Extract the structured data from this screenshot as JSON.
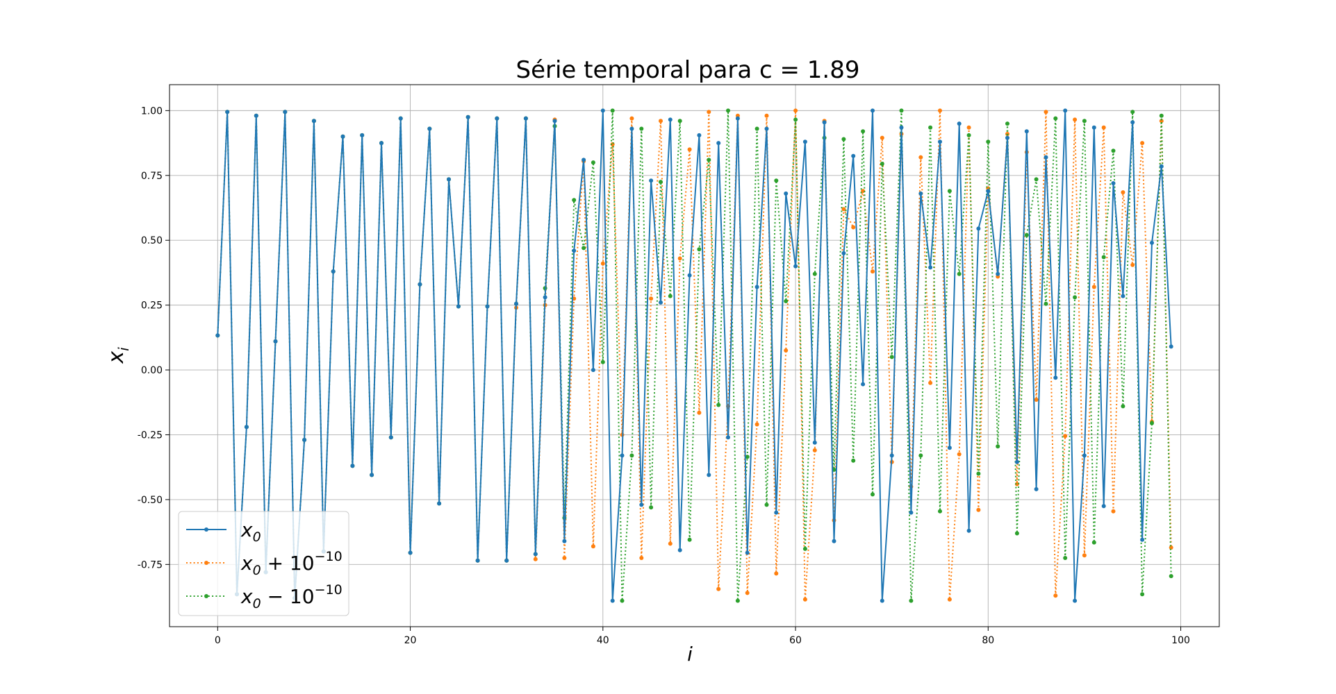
{
  "chart_data": {
    "type": "line",
    "title": "Série temporal para c = 1.89",
    "xlabel": "i",
    "ylabel_base": "x",
    "ylabel_sub": "i",
    "xlim": [
      -5,
      104
    ],
    "ylim": [
      -0.99,
      1.1
    ],
    "xticks": [
      0,
      20,
      40,
      60,
      80,
      100
    ],
    "yticks": [
      -0.75,
      -0.5,
      -0.25,
      0.0,
      0.25,
      0.5,
      0.75,
      1.0
    ],
    "grid": true,
    "legend_position": "lower-left",
    "series": [
      {
        "legend_base": "x",
        "legend_sub": "0",
        "legend_op": "",
        "legend_sup": "",
        "color": "#1f77b4",
        "linestyle": "solid",
        "x": [
          0,
          1,
          2,
          3,
          4,
          5,
          6,
          7,
          8,
          9,
          10,
          11,
          12,
          13,
          14,
          15,
          16,
          17,
          18,
          19,
          20,
          21,
          22,
          23,
          24,
          25,
          26,
          27,
          28,
          29,
          30,
          31,
          32,
          33,
          34,
          35,
          36,
          37,
          38,
          39,
          40,
          41,
          42,
          43,
          44,
          45,
          46,
          47,
          48,
          49,
          50,
          51,
          52,
          53,
          54,
          55,
          56,
          57,
          58,
          59,
          60,
          61,
          62,
          63,
          64,
          65,
          66,
          67,
          68,
          69,
          70,
          71,
          72,
          73,
          74,
          75,
          76,
          77,
          78,
          79,
          80,
          81,
          82,
          83,
          84,
          85,
          86,
          87,
          88,
          89,
          90,
          91,
          92,
          93,
          94,
          95,
          96,
          97,
          98,
          99
        ],
        "y": [
          0.133,
          0.995,
          -0.865,
          -0.22,
          0.98,
          -0.78,
          0.11,
          0.995,
          -0.88,
          -0.27,
          0.96,
          -0.7,
          0.38,
          0.9,
          -0.37,
          0.905,
          -0.405,
          0.875,
          -0.26,
          0.97,
          -0.705,
          0.33,
          0.93,
          -0.515,
          0.735,
          0.245,
          0.975,
          -0.735,
          0.245,
          0.97,
          -0.735,
          0.255,
          0.97,
          -0.71,
          0.28,
          0.96,
          -0.66,
          0.46,
          0.81,
          0.0,
          1.0,
          -0.89,
          -0.33,
          0.93,
          -0.52,
          0.73,
          0.26,
          0.965,
          -0.695,
          0.365,
          0.905,
          -0.405,
          0.875,
          -0.26,
          0.97,
          -0.705,
          0.32,
          0.93,
          -0.55,
          0.68,
          0.4,
          0.88,
          -0.28,
          0.955,
          -0.66,
          0.45,
          0.825,
          -0.055,
          1.0,
          -0.89,
          -0.33,
          0.935,
          -0.55,
          0.68,
          0.395,
          0.88,
          -0.3,
          0.95,
          -0.62,
          0.545,
          0.69,
          0.37,
          0.895,
          -0.355,
          0.92,
          -0.46,
          0.82,
          -0.03,
          1.0,
          -0.89,
          -0.33,
          0.935,
          -0.525,
          0.72,
          0.285,
          0.955,
          -0.655,
          0.49,
          0.785,
          0.09
        ]
      },
      {
        "legend_base": "x",
        "legend_sub": "0",
        "legend_op": "+ 10",
        "legend_sup": "−10",
        "color": "#ff7f0e",
        "linestyle": "dotted",
        "x": [
          0,
          1,
          2,
          3,
          4,
          5,
          6,
          7,
          8,
          9,
          10,
          11,
          12,
          13,
          14,
          15,
          16,
          17,
          18,
          19,
          20,
          21,
          22,
          23,
          24,
          25,
          26,
          27,
          28,
          29,
          30,
          31,
          32,
          33,
          34,
          35,
          36,
          37,
          38,
          39,
          40,
          41,
          42,
          43,
          44,
          45,
          46,
          47,
          48,
          49,
          50,
          51,
          52,
          53,
          54,
          55,
          56,
          57,
          58,
          59,
          60,
          61,
          62,
          63,
          64,
          65,
          66,
          67,
          68,
          69,
          70,
          71,
          72,
          73,
          74,
          75,
          76,
          77,
          78,
          79,
          80,
          81,
          82,
          83,
          84,
          85,
          86,
          87,
          88,
          89,
          90,
          91,
          92,
          93,
          94,
          95,
          96,
          97,
          98,
          99
        ],
        "y": [
          0.133,
          0.995,
          -0.865,
          -0.22,
          0.98,
          -0.78,
          0.11,
          0.995,
          -0.88,
          -0.27,
          0.96,
          -0.7,
          0.38,
          0.9,
          -0.37,
          0.905,
          -0.405,
          0.875,
          -0.26,
          0.97,
          -0.705,
          0.33,
          0.93,
          -0.515,
          0.735,
          0.245,
          0.975,
          -0.735,
          0.245,
          0.97,
          -0.735,
          0.24,
          0.97,
          -0.73,
          0.25,
          0.965,
          -0.725,
          0.275,
          0.805,
          -0.68,
          0.41,
          0.87,
          -0.25,
          0.97,
          -0.725,
          0.275,
          0.96,
          -0.67,
          0.43,
          0.85,
          -0.165,
          0.995,
          -0.845,
          -0.14,
          0.98,
          -0.86,
          -0.21,
          0.98,
          -0.785,
          0.075,
          1.0,
          -0.885,
          -0.31,
          0.96,
          -0.58,
          0.62,
          0.55,
          0.69,
          0.38,
          0.895,
          -0.355,
          0.91,
          -0.45,
          0.82,
          -0.05,
          1.0,
          -0.885,
          -0.325,
          0.935,
          -0.54,
          0.7,
          0.36,
          0.91,
          -0.44,
          0.84,
          -0.115,
          0.995,
          -0.87,
          -0.255,
          0.965,
          -0.715,
          0.32,
          0.935,
          -0.545,
          0.685,
          0.405,
          0.875,
          -0.2,
          0.96,
          -0.685
        ]
      },
      {
        "legend_base": "x",
        "legend_sub": "0",
        "legend_op": "− 10",
        "legend_sup": "−10",
        "color": "#2ca02c",
        "linestyle": "dotted",
        "x": [
          0,
          1,
          2,
          3,
          4,
          5,
          6,
          7,
          8,
          9,
          10,
          11,
          12,
          13,
          14,
          15,
          16,
          17,
          18,
          19,
          20,
          21,
          22,
          23,
          24,
          25,
          26,
          27,
          28,
          29,
          30,
          31,
          32,
          33,
          34,
          35,
          36,
          37,
          38,
          39,
          40,
          41,
          42,
          43,
          44,
          45,
          46,
          47,
          48,
          49,
          50,
          51,
          52,
          53,
          54,
          55,
          56,
          57,
          58,
          59,
          60,
          61,
          62,
          63,
          64,
          65,
          66,
          67,
          68,
          69,
          70,
          71,
          72,
          73,
          74,
          75,
          76,
          77,
          78,
          79,
          80,
          81,
          82,
          83,
          84,
          85,
          86,
          87,
          88,
          89,
          90,
          91,
          92,
          93,
          94,
          95,
          96,
          97,
          98,
          99
        ],
        "y": [
          0.133,
          0.995,
          -0.865,
          -0.22,
          0.98,
          -0.78,
          0.11,
          0.995,
          -0.88,
          -0.27,
          0.96,
          -0.7,
          0.38,
          0.9,
          -0.37,
          0.905,
          -0.405,
          0.875,
          -0.26,
          0.97,
          -0.705,
          0.33,
          0.93,
          -0.515,
          0.735,
          0.245,
          0.975,
          -0.735,
          0.245,
          0.97,
          -0.735,
          0.255,
          0.97,
          -0.71,
          0.315,
          0.94,
          -0.57,
          0.655,
          0.47,
          0.8,
          0.03,
          1.0,
          -0.89,
          -0.33,
          0.93,
          -0.53,
          0.725,
          0.285,
          0.96,
          -0.655,
          0.465,
          0.81,
          -0.135,
          1.0,
          -0.89,
          -0.335,
          0.93,
          -0.52,
          0.73,
          0.265,
          0.965,
          -0.69,
          0.37,
          0.895,
          -0.385,
          0.89,
          -0.35,
          0.92,
          -0.48,
          0.795,
          0.05,
          1.0,
          -0.89,
          -0.33,
          0.935,
          -0.545,
          0.69,
          0.37,
          0.905,
          -0.4,
          0.88,
          -0.295,
          0.95,
          -0.63,
          0.52,
          0.735,
          0.255,
          0.97,
          -0.725,
          0.28,
          0.96,
          -0.665,
          0.435,
          0.845,
          -0.14,
          0.995,
          -0.865,
          -0.205,
          0.98,
          -0.795
        ]
      }
    ]
  }
}
